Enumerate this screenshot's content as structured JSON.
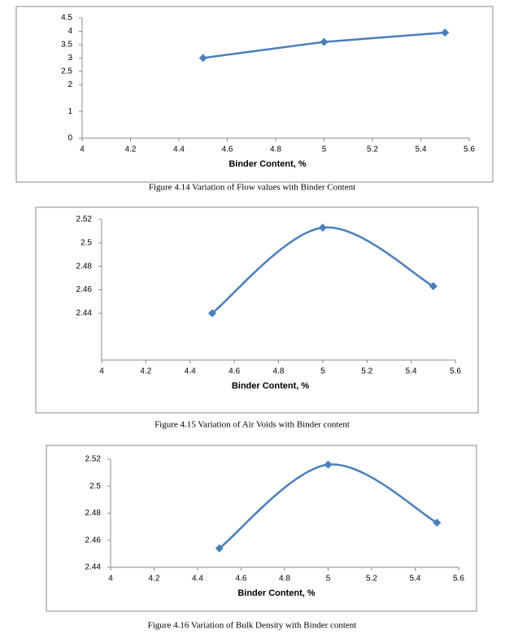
{
  "chart_data": [
    {
      "type": "line",
      "smooth": false,
      "color": "#4a7ebb",
      "xlabel": "Binder Content, %",
      "x": [
        4.5,
        5,
        5.5
      ],
      "values": [
        3.0,
        3.6,
        3.95
      ],
      "xlim": [
        4,
        5.6
      ],
      "xticks": [
        4,
        4.2,
        4.4,
        4.6,
        4.8,
        5,
        5.2,
        5.4,
        5.6
      ],
      "ylim": [
        0,
        4.5
      ],
      "yticks": [
        0,
        1,
        2,
        2.5,
        3,
        3.5,
        4,
        4.5
      ],
      "caption": "Figure 4.14 Variation of Flow values with Binder Content"
    },
    {
      "type": "line",
      "smooth": true,
      "color": "#4a7ebb",
      "xlabel": "Binder Content, %",
      "x": [
        4.5,
        5,
        5.5
      ],
      "values": [
        2.44,
        2.513,
        2.463
      ],
      "xlim": [
        4,
        5.6
      ],
      "xticks": [
        4,
        4.2,
        4.4,
        4.6,
        4.8,
        5,
        5.2,
        5.4,
        5.6
      ],
      "ylim": [
        2.4,
        2.52
      ],
      "yticks": [
        2.44,
        2.46,
        2.48,
        2.5,
        2.52
      ],
      "caption": "Figure 4.15 Variation of Air Voids with Binder content"
    },
    {
      "type": "line",
      "smooth": true,
      "color": "#4a7ebb",
      "xlabel": "Binder Content, %",
      "x": [
        4.5,
        5,
        5.5
      ],
      "values": [
        2.454,
        2.516,
        2.473
      ],
      "xlim": [
        4,
        5.6
      ],
      "xticks": [
        4,
        4.2,
        4.4,
        4.6,
        4.8,
        5,
        5.2,
        5.4,
        5.6
      ],
      "ylim": [
        2.44,
        2.52
      ],
      "yticks": [
        2.44,
        2.46,
        2.48,
        2.5,
        2.52
      ],
      "caption": "Figure 4.16 Variation of Bulk Density with Binder content"
    }
  ]
}
